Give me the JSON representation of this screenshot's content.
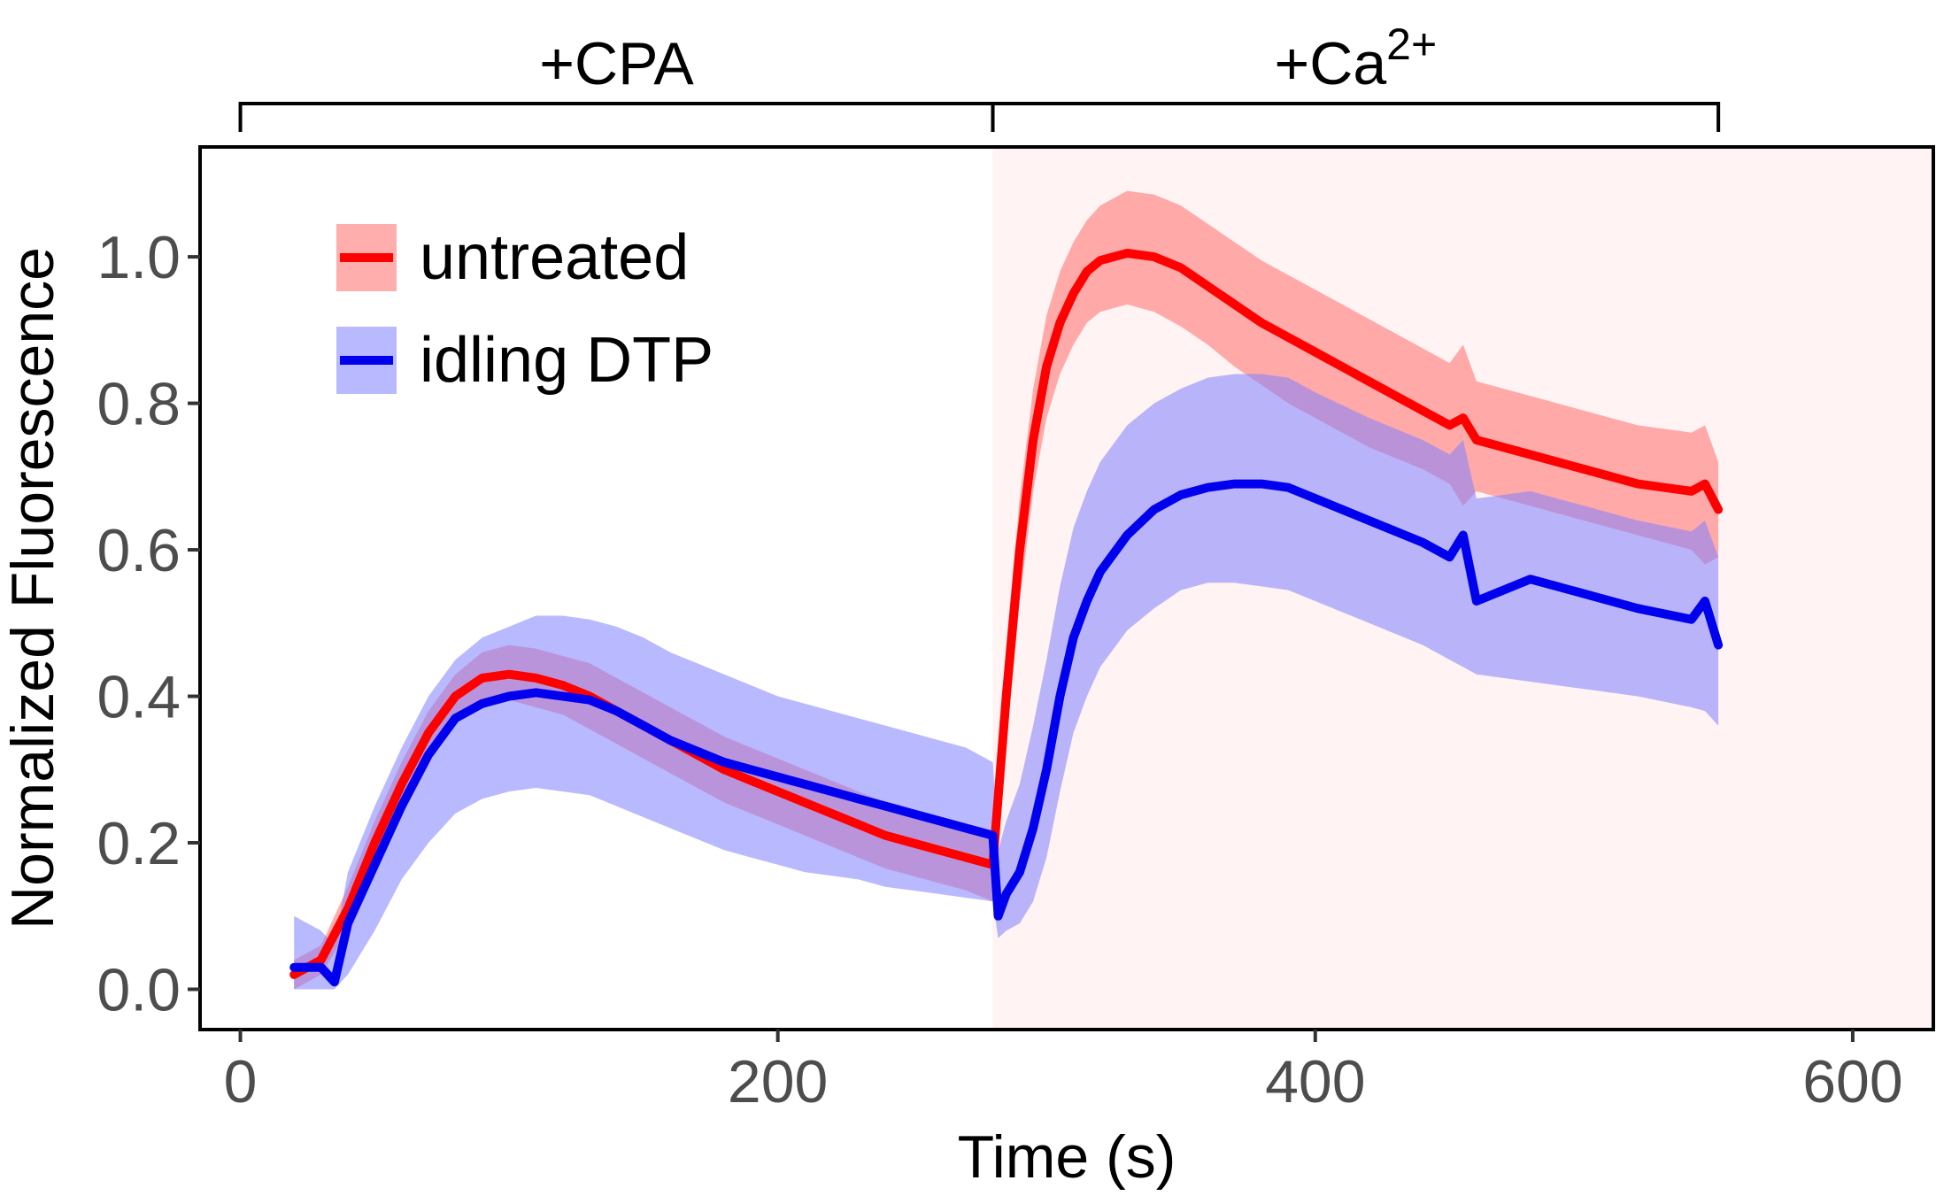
{
  "chart_data": {
    "type": "line",
    "xlabel": "Time (s)",
    "ylabel": "Normalized Fluorescence",
    "xlim": [
      -15,
      630
    ],
    "ylim": [
      -0.055,
      1.15
    ],
    "xticks": [
      0,
      200,
      400,
      600
    ],
    "xtick_labels": [
      "0",
      "200",
      "400",
      "600"
    ],
    "yticks": [
      0.0,
      0.2,
      0.4,
      0.6,
      0.8,
      1.0
    ],
    "ytick_labels": [
      "0.0",
      "0.2",
      "0.4",
      "0.6",
      "0.8",
      "1.0"
    ],
    "grid": false,
    "legend_position": "top-left",
    "phases": [
      {
        "label": "+CPA",
        "start": 0,
        "end": 280
      },
      {
        "label": "+Ca",
        "superscript": "2+",
        "start": 280,
        "end": 550,
        "shaded": true,
        "shade_color": "#fff3f3"
      }
    ],
    "series": [
      {
        "name": "untreated",
        "color": "#ff0000",
        "band_color": "#ff6b6b",
        "x": [
          20,
          30,
          40,
          50,
          60,
          70,
          80,
          90,
          100,
          110,
          120,
          130,
          140,
          150,
          160,
          170,
          180,
          190,
          200,
          210,
          220,
          230,
          240,
          250,
          260,
          270,
          280,
          285,
          290,
          295,
          300,
          305,
          310,
          315,
          320,
          325,
          330,
          340,
          350,
          360,
          370,
          380,
          390,
          400,
          420,
          440,
          450,
          455,
          460,
          480,
          500,
          520,
          540,
          545,
          550
        ],
        "mean": [
          0.02,
          0.04,
          0.11,
          0.2,
          0.28,
          0.35,
          0.4,
          0.425,
          0.43,
          0.425,
          0.415,
          0.4,
          0.38,
          0.36,
          0.34,
          0.32,
          0.3,
          0.285,
          0.27,
          0.255,
          0.24,
          0.225,
          0.21,
          0.2,
          0.19,
          0.18,
          0.17,
          0.4,
          0.6,
          0.75,
          0.85,
          0.91,
          0.95,
          0.98,
          0.995,
          1.0,
          1.005,
          1.0,
          0.985,
          0.96,
          0.935,
          0.91,
          0.89,
          0.87,
          0.83,
          0.79,
          0.77,
          0.78,
          0.75,
          0.73,
          0.71,
          0.69,
          0.68,
          0.69,
          0.655
        ],
        "lower": [
          0.0,
          0.02,
          0.08,
          0.17,
          0.25,
          0.32,
          0.37,
          0.39,
          0.395,
          0.385,
          0.375,
          0.355,
          0.335,
          0.315,
          0.295,
          0.275,
          0.255,
          0.24,
          0.225,
          0.21,
          0.195,
          0.18,
          0.165,
          0.155,
          0.145,
          0.135,
          0.12,
          0.33,
          0.53,
          0.68,
          0.78,
          0.84,
          0.88,
          0.91,
          0.925,
          0.93,
          0.935,
          0.925,
          0.905,
          0.88,
          0.85,
          0.825,
          0.8,
          0.78,
          0.74,
          0.71,
          0.69,
          0.66,
          0.68,
          0.66,
          0.64,
          0.62,
          0.6,
          0.58,
          0.59
        ],
        "upper": [
          0.04,
          0.06,
          0.14,
          0.23,
          0.31,
          0.38,
          0.43,
          0.46,
          0.47,
          0.465,
          0.455,
          0.445,
          0.425,
          0.405,
          0.385,
          0.365,
          0.345,
          0.33,
          0.315,
          0.3,
          0.285,
          0.27,
          0.255,
          0.245,
          0.235,
          0.225,
          0.215,
          0.47,
          0.67,
          0.82,
          0.92,
          0.98,
          1.02,
          1.05,
          1.07,
          1.08,
          1.09,
          1.085,
          1.07,
          1.045,
          1.02,
          0.995,
          0.975,
          0.955,
          0.915,
          0.875,
          0.855,
          0.88,
          0.83,
          0.81,
          0.79,
          0.77,
          0.76,
          0.77,
          0.72
        ]
      },
      {
        "name": "idling DTP",
        "color": "#0000ee",
        "band_color": "#8080ff",
        "x": [
          20,
          30,
          35,
          40,
          50,
          60,
          70,
          80,
          90,
          100,
          110,
          120,
          130,
          140,
          150,
          160,
          170,
          180,
          190,
          200,
          210,
          220,
          230,
          240,
          250,
          260,
          270,
          280,
          282,
          285,
          290,
          295,
          300,
          305,
          310,
          315,
          320,
          330,
          340,
          350,
          360,
          370,
          380,
          390,
          400,
          420,
          440,
          450,
          455,
          460,
          480,
          500,
          520,
          540,
          545,
          550
        ],
        "mean": [
          0.03,
          0.03,
          0.01,
          0.09,
          0.17,
          0.25,
          0.32,
          0.37,
          0.39,
          0.4,
          0.405,
          0.4,
          0.395,
          0.38,
          0.36,
          0.34,
          0.325,
          0.31,
          0.3,
          0.29,
          0.28,
          0.27,
          0.26,
          0.25,
          0.24,
          0.23,
          0.22,
          0.21,
          0.1,
          0.13,
          0.16,
          0.22,
          0.3,
          0.4,
          0.48,
          0.53,
          0.57,
          0.62,
          0.655,
          0.675,
          0.685,
          0.69,
          0.69,
          0.685,
          0.67,
          0.64,
          0.61,
          0.59,
          0.62,
          0.53,
          0.56,
          0.54,
          0.52,
          0.505,
          0.53,
          0.47
        ],
        "lower": [
          0.0,
          0.0,
          0.0,
          0.02,
          0.08,
          0.15,
          0.2,
          0.24,
          0.26,
          0.27,
          0.275,
          0.27,
          0.265,
          0.25,
          0.235,
          0.22,
          0.205,
          0.19,
          0.18,
          0.17,
          0.16,
          0.155,
          0.15,
          0.14,
          0.135,
          0.13,
          0.125,
          0.12,
          0.07,
          0.08,
          0.09,
          0.12,
          0.18,
          0.27,
          0.35,
          0.4,
          0.44,
          0.49,
          0.52,
          0.545,
          0.555,
          0.555,
          0.55,
          0.545,
          0.53,
          0.5,
          0.47,
          0.45,
          0.44,
          0.43,
          0.42,
          0.41,
          0.4,
          0.385,
          0.38,
          0.36
        ],
        "upper": [
          0.1,
          0.08,
          0.06,
          0.16,
          0.25,
          0.33,
          0.4,
          0.45,
          0.48,
          0.495,
          0.51,
          0.51,
          0.505,
          0.495,
          0.48,
          0.46,
          0.445,
          0.43,
          0.415,
          0.4,
          0.39,
          0.38,
          0.37,
          0.36,
          0.35,
          0.34,
          0.33,
          0.31,
          0.19,
          0.23,
          0.28,
          0.36,
          0.45,
          0.55,
          0.63,
          0.68,
          0.72,
          0.77,
          0.8,
          0.82,
          0.835,
          0.84,
          0.84,
          0.835,
          0.815,
          0.78,
          0.75,
          0.73,
          0.75,
          0.67,
          0.68,
          0.66,
          0.64,
          0.625,
          0.64,
          0.59
        ]
      }
    ]
  }
}
